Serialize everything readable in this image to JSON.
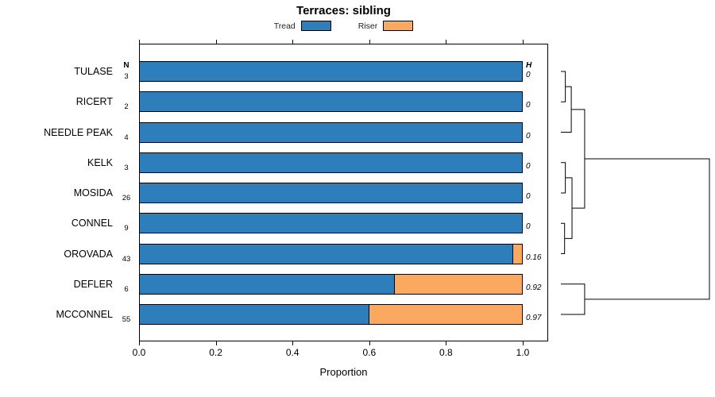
{
  "title": "Terraces: sibling",
  "legend": {
    "items": [
      {
        "label": "Tread",
        "color": "#2E7EBC"
      },
      {
        "label": "Riser",
        "color": "#FBA961"
      }
    ]
  },
  "columns": {
    "n_header": "N",
    "h_header": "H"
  },
  "xaxis": {
    "label": "Proportion",
    "ticks": [
      "0.0",
      "0.2",
      "0.4",
      "0.6",
      "0.8",
      "1.0"
    ],
    "tick_values": [
      0,
      0.2,
      0.4,
      0.6,
      0.8,
      1.0
    ]
  },
  "chart_data": {
    "type": "bar",
    "orientation": "horizontal",
    "stacked": true,
    "title": "Terraces: sibling",
    "xlabel": "Proportion",
    "xlim": [
      0,
      1
    ],
    "grid": false,
    "legend_position": "top",
    "categories": [
      "TULASE",
      "RICERT",
      "NEEDLE PEAK",
      "KELK",
      "MOSIDA",
      "CONNEL",
      "OROVADA",
      "DEFLER",
      "MCCONNEL"
    ],
    "n_values": [
      3,
      2,
      4,
      3,
      26,
      9,
      43,
      6,
      55
    ],
    "h_values": [
      "0",
      "0",
      "0",
      "0",
      "0",
      "0",
      "0.16",
      "0.92",
      "0.97"
    ],
    "series": [
      {
        "name": "Tread",
        "color": "#2E7EBC",
        "values": [
          1,
          1,
          1,
          1,
          1,
          1,
          0.975,
          0.667,
          0.6
        ]
      },
      {
        "name": "Riser",
        "color": "#FBA961",
        "values": [
          0,
          0,
          0,
          0,
          0,
          0,
          0.025,
          0.333,
          0.4
        ]
      }
    ],
    "dendrogram": {
      "side": "right",
      "newick": "((((TULASE,RICERT),NEEDLE PEAK),((KELK,MOSIDA),(CONNEL,OROVADA))),(DEFLER,MCCONNEL))",
      "merges": [
        {
          "id": 9,
          "children": [
            0,
            1
          ],
          "height": 0.03
        },
        {
          "id": 10,
          "children": [
            9,
            2
          ],
          "height": 0.07
        },
        {
          "id": 11,
          "children": [
            3,
            4
          ],
          "height": 0.03
        },
        {
          "id": 12,
          "children": [
            5,
            6
          ],
          "height": 0.025
        },
        {
          "id": 13,
          "children": [
            11,
            12
          ],
          "height": 0.075
        },
        {
          "id": 14,
          "children": [
            10,
            13
          ],
          "height": 0.16
        },
        {
          "id": 15,
          "children": [
            7,
            8
          ],
          "height": 0.16
        },
        {
          "id": 16,
          "children": [
            14,
            15
          ],
          "height": 1.0
        }
      ]
    }
  }
}
